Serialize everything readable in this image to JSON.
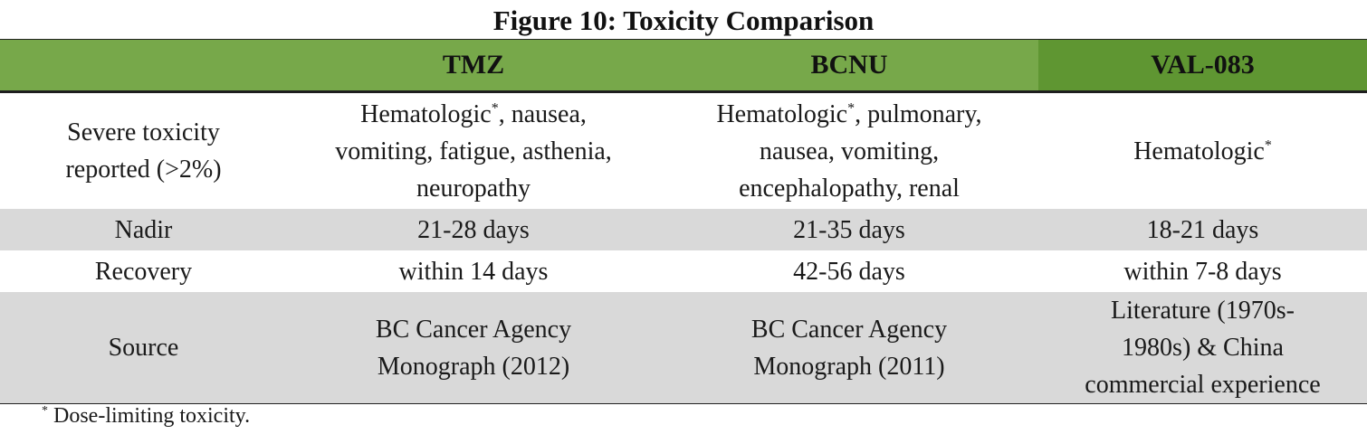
{
  "figure": {
    "title": "Figure 10: Toxicity Comparison"
  },
  "table": {
    "headers": [
      "",
      "TMZ",
      "BCNU",
      "VAL-083"
    ],
    "severe_toxicity": {
      "label_line1": "Severe toxicity",
      "label_line2": "reported (>2%)",
      "tmz": {
        "lead": "Hematologic",
        "mark": "*",
        "rest_line1": ", nausea,",
        "line2": "vomiting, fatigue, asthenia,",
        "line3": "neuropathy"
      },
      "bcnu": {
        "lead": "Hematologic",
        "mark": "*",
        "rest_line1": ", pulmonary,",
        "line2": "nausea, vomiting,",
        "line3": "encephalopathy, renal"
      },
      "val083": {
        "lead": "Hematologic",
        "mark": "*"
      }
    },
    "nadir": {
      "label": "Nadir",
      "tmz": "21-28 days",
      "bcnu": "21-35 days",
      "val083": "18-21 days"
    },
    "recovery": {
      "label": "Recovery",
      "tmz": "within 14 days",
      "bcnu": "42-56 days",
      "val083": "within 7-8 days"
    },
    "source": {
      "label": "Source",
      "tmz_line1": "BC Cancer Agency",
      "tmz_line2": "Monograph (2012)",
      "bcnu_line1": "BC Cancer Agency",
      "bcnu_line2": "Monograph (2011)",
      "val083_line1": "Literature (1970s-",
      "val083_line2": "1980s) & China",
      "val083_line3": "commercial experience"
    }
  },
  "footnote": {
    "mark": "*",
    "text": " Dose-limiting toxicity."
  },
  "colors": {
    "header_green": "#77a84a",
    "header_highlight_green": "#5f9632",
    "row_shade_gray": "#d9d9d9"
  }
}
